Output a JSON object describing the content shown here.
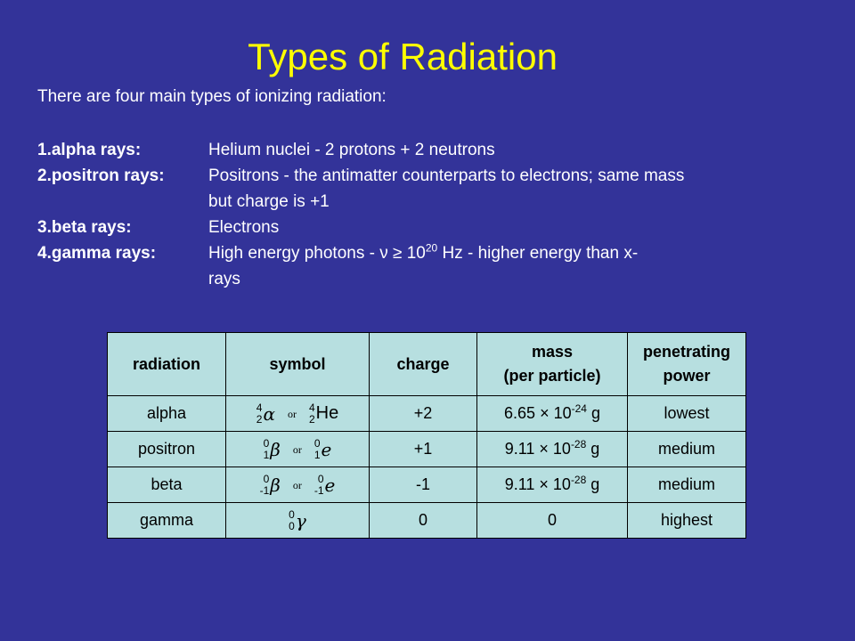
{
  "title": "Types of Radiation",
  "intro": "There are four main types of ionizing radiation:",
  "types": [
    {
      "name": "1.alpha rays:",
      "desc_main": "Helium nuclei - 2 protons + 2 neutrons",
      "desc_sup": "",
      "desc_tail": "",
      "desc_cont": ""
    },
    {
      "name": "2.positron rays:",
      "desc_main": "Positrons - the antimatter counterparts to electrons; same mass",
      "desc_sup": "",
      "desc_tail": "",
      "desc_cont": "but charge is +1"
    },
    {
      "name": "3.beta rays:",
      "desc_main": "Electrons",
      "desc_sup": "",
      "desc_tail": "",
      "desc_cont": ""
    },
    {
      "name": "4.gamma rays:",
      "desc_main": "High energy photons - ν ≥ 10",
      "desc_sup": "20",
      "desc_tail": " Hz - higher energy than x-",
      "desc_cont": "rays"
    }
  ],
  "table": {
    "headers": {
      "radiation": "radiation",
      "symbol": "symbol",
      "charge": "charge",
      "mass_line1": "mass",
      "mass_line2": "(per particle)",
      "power_line1": "penetrating",
      "power_line2": "power"
    },
    "or_text": "or",
    "rows": [
      {
        "radiation": "alpha",
        "sym1": {
          "top": "4",
          "bottom": "2",
          "glyph": "α"
        },
        "sym2": {
          "top": "4",
          "bottom": "2",
          "glyph": "He"
        },
        "charge": "+2",
        "mass_base": "6.65 × 10",
        "mass_exp": "-24",
        "mass_unit": " g",
        "power": "lowest"
      },
      {
        "radiation": "positron",
        "sym1": {
          "top": "0",
          "bottom": "1",
          "glyph": "β"
        },
        "sym2": {
          "top": "0",
          "bottom": "1",
          "glyph": "e"
        },
        "charge": "+1",
        "mass_base": "9.11 × 10",
        "mass_exp": "-28",
        "mass_unit": " g",
        "power": "medium"
      },
      {
        "radiation": "beta",
        "sym1": {
          "top": "0",
          "bottom": "-1",
          "glyph": "β"
        },
        "sym2": {
          "top": "0",
          "bottom": "-1",
          "glyph": "e"
        },
        "charge": "-1",
        "mass_base": "9.11 × 10",
        "mass_exp": "-28",
        "mass_unit": " g",
        "power": "medium"
      },
      {
        "radiation": "gamma",
        "sym1": {
          "top": "0",
          "bottom": "0",
          "glyph": "γ"
        },
        "charge": "0",
        "mass_base": "0",
        "mass_exp": "",
        "mass_unit": "",
        "power": "highest"
      }
    ]
  },
  "colors": {
    "background": "#333399",
    "title": "#ffff00",
    "table_fill": "#b7dfe0"
  }
}
